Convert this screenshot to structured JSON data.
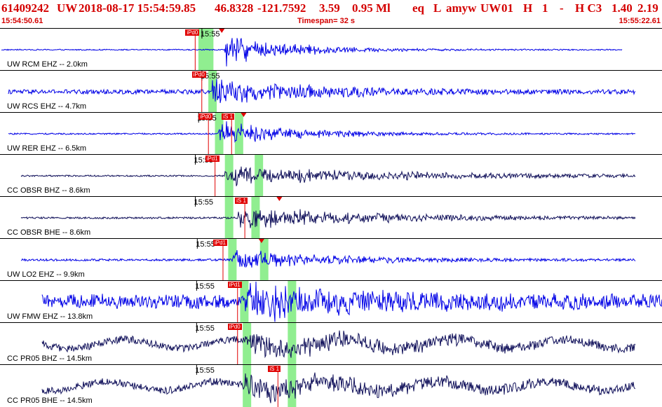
{
  "header": {
    "event_id": "61409242",
    "network": "UW",
    "origin_time": "2018-08-17 15:54:59.85",
    "latitude": "46.8328",
    "longitude": "-121.7592",
    "depth": "3.59",
    "magnitude": "0.95 Ml",
    "event_type": "eq",
    "geo_type": "L",
    "source": "amyw",
    "auth": "UW",
    "version": "01",
    "gtype": "H",
    "rflag": "1",
    "dash": "-",
    "quality_class": "H C3",
    "rms": "1.40",
    "erh": "2.19",
    "start_time": "15:54:50.61",
    "timespan": "Timespan=  32 s",
    "end_time": "15:55:22.61"
  },
  "time_tick_label": "15:55",
  "colors": {
    "header_text": "#d40000",
    "trace_blue": "#0000e6",
    "trace_navy": "#10105a",
    "pick_red": "#e00000",
    "pick_window": "#90ee90"
  },
  "traces": [
    {
      "label": "UW RCM EHZ -- 2.0km",
      "color": "blue",
      "amp": 0.9,
      "noise": 0.03,
      "onset": 0.34,
      "decay": 0.35,
      "tick": 0.305,
      "windows": [
        0.305,
        0.315
      ],
      "picks": [
        {
          "text": "iPd0",
          "x": 0.28
        }
      ],
      "marker": 0.335
    },
    {
      "label": "UW RCS EHZ -- 4.7km",
      "color": "blue",
      "amp": 0.85,
      "noise": 0.12,
      "onset": 0.32,
      "decay": 0.45,
      "tick": 0.305,
      "windows": [
        0.32
      ],
      "picks": [
        {
          "text": "iPd0",
          "x": 0.29
        }
      ],
      "marker": null
    },
    {
      "label": "UW RER EHZ -- 6.5km",
      "color": "blue",
      "amp": 0.75,
      "noise": 0.04,
      "onset": 0.33,
      "decay": 0.4,
      "tick": 0.3,
      "windows": [
        0.33,
        0.36
      ],
      "picks": [
        {
          "text": "iPd0",
          "x": 0.3
        },
        {
          "text": "iS 1",
          "x": 0.335
        }
      ],
      "marker": 0.368
    },
    {
      "label": "CC OBSR BHZ -- 8.6km",
      "color": "navy",
      "amp": 0.6,
      "noise": 0.04,
      "onset": 0.34,
      "decay": 0.9,
      "tick": 0.295,
      "windows": [
        0.345,
        0.39
      ],
      "picks": [
        {
          "text": "iPd1",
          "x": 0.31
        }
      ],
      "marker": null
    },
    {
      "label": "CC OBSR BHE -- 8.6km",
      "color": "navy",
      "amp": 0.7,
      "noise": 0.05,
      "onset": 0.36,
      "decay": 0.7,
      "tick": 0.295,
      "windows": [
        0.345,
        0.385
      ],
      "picks": [
        {
          "text": "iS 1",
          "x": 0.355
        }
      ],
      "marker": 0.422
    },
    {
      "label": "UW LO2 EHZ -- 9.9km",
      "color": "blue",
      "amp": 0.6,
      "noise": 0.06,
      "onset": 0.35,
      "decay": 0.5,
      "tick": 0.298,
      "windows": [
        0.35,
        0.398
      ],
      "picks": [
        {
          "text": "iPd1",
          "x": 0.322
        }
      ],
      "marker": 0.395
    },
    {
      "label": "UW FMW EHZ -- 13.8km",
      "color": "blue",
      "amp": 0.9,
      "noise": 0.35,
      "onset": 0.37,
      "decay": 0.6,
      "tick": 0.297,
      "windows": [
        0.368,
        0.44
      ],
      "picks": [
        {
          "text": "iPd1",
          "x": 0.344
        }
      ],
      "marker": null
    },
    {
      "label": "CC PR05 BHZ -- 14.5km",
      "color": "navy",
      "amp": 0.6,
      "noise": 0.2,
      "onset": 0.37,
      "decay": 0.8,
      "tick": 0.297,
      "windows": [
        0.372,
        0.44
      ],
      "picks": [
        {
          "text": "iPd0",
          "x": 0.344
        }
      ],
      "marker": null
    },
    {
      "label": "CC PR05 BHE -- 14.5km",
      "color": "navy",
      "amp": 0.6,
      "noise": 0.2,
      "onset": 0.37,
      "decay": 0.8,
      "tick": 0.297,
      "windows": [
        0.372,
        0.44
      ],
      "picks": [
        {
          "text": "iS 1",
          "x": 0.405
        }
      ],
      "marker": null
    }
  ]
}
